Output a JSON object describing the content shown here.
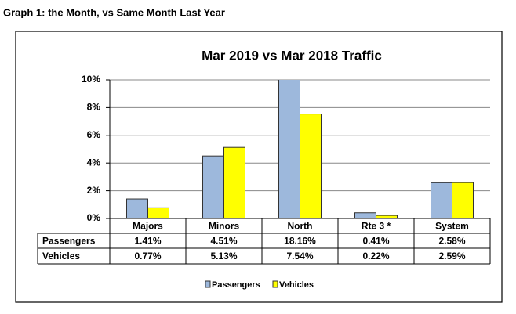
{
  "page_title": "Graph 1: the Month, vs Same Month Last Year",
  "chart_data": {
    "type": "bar",
    "title": "Mar 2019 vs Mar 2018 Traffic",
    "categories": [
      "Majors",
      "Minors",
      "North",
      "Rte 3 *",
      "System"
    ],
    "series": [
      {
        "name": "Passengers",
        "color": "#9db8dc",
        "values": [
          1.41,
          4.51,
          18.16,
          0.41,
          2.58
        ],
        "value_labels": [
          "1.41%",
          "4.51%",
          "18.16%",
          "0.41%",
          "2.58%"
        ]
      },
      {
        "name": "Vehicles",
        "color": "#ffff00",
        "values": [
          0.77,
          5.13,
          7.54,
          0.22,
          2.59
        ],
        "value_labels": [
          "0.77%",
          "5.13%",
          "7.54%",
          "0.22%",
          "2.59%"
        ]
      }
    ],
    "ylim": [
      0,
      10
    ],
    "yticks": [
      {
        "value": 0,
        "label": "0%"
      },
      {
        "value": 2,
        "label": "2%"
      },
      {
        "value": 4,
        "label": "4%"
      },
      {
        "value": 6,
        "label": "6%"
      },
      {
        "value": 8,
        "label": "8%"
      },
      {
        "value": 10,
        "label": "10%"
      }
    ],
    "grid": true
  }
}
